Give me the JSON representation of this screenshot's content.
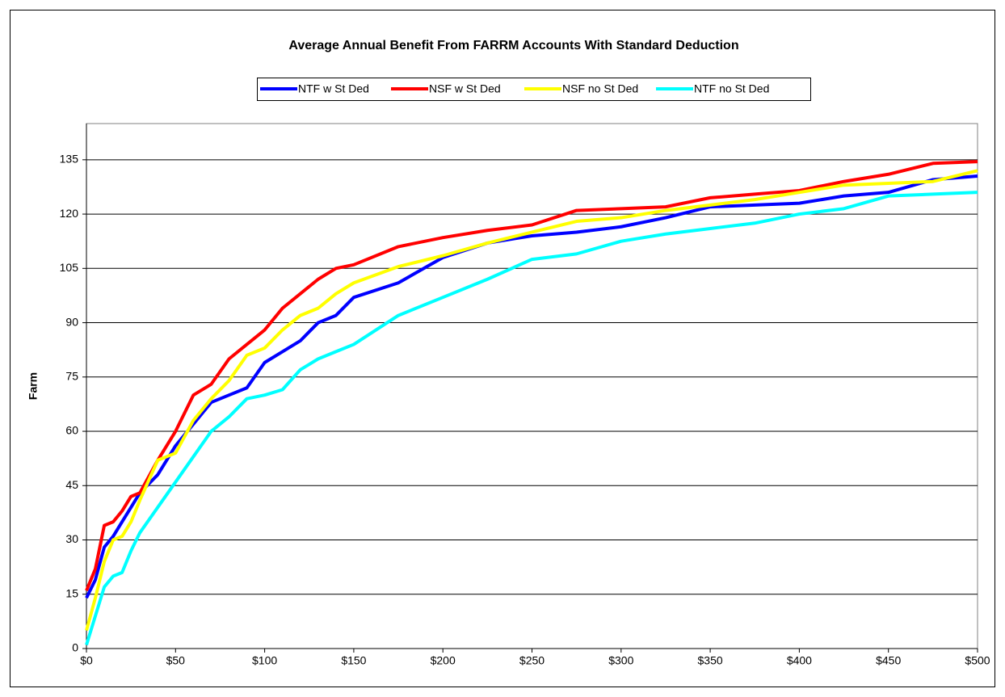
{
  "chart_data": {
    "type": "line",
    "title": "Average Annual Benefit From FARRM Accounts With Standard Deduction",
    "y_label": "Farm",
    "x": [
      0,
      5,
      10,
      15,
      20,
      25,
      30,
      40,
      50,
      60,
      70,
      80,
      90,
      100,
      110,
      120,
      130,
      140,
      150,
      175,
      200,
      225,
      250,
      275,
      300,
      325,
      350,
      375,
      400,
      425,
      450,
      475,
      500
    ],
    "series": [
      {
        "name": "NTF w St Ded",
        "color": "#0000ff",
        "values": [
          14,
          19,
          28,
          31,
          35,
          39,
          43,
          48,
          56,
          62,
          68,
          70,
          72,
          79,
          82,
          85,
          90,
          92,
          97,
          101,
          108,
          112,
          114,
          115,
          116.5,
          119,
          122,
          122.5,
          123,
          125,
          126,
          129.5,
          130.5
        ]
      },
      {
        "name": "NSF w St Ded",
        "color": "#ff0000",
        "values": [
          16,
          22,
          34,
          35,
          38,
          42,
          43,
          52,
          60,
          70,
          73,
          80,
          84,
          88,
          94,
          98,
          102,
          105,
          106,
          111,
          113.5,
          115.5,
          117,
          121,
          121.5,
          122,
          124.5,
          125.5,
          126.5,
          129,
          131,
          134,
          134.5
        ]
      },
      {
        "name": "NSF no St Ded",
        "color": "#ffff00",
        "values": [
          5,
          14,
          24,
          30,
          31,
          35,
          41,
          52,
          54,
          63,
          69,
          74,
          81,
          83,
          88,
          92,
          94,
          98,
          101,
          105.5,
          108.5,
          112,
          115,
          118,
          119,
          121,
          122.5,
          124,
          126,
          128,
          128.5,
          129,
          132
        ]
      },
      {
        "name": "NTF no St Ded",
        "color": "#00ffff",
        "values": [
          1,
          9,
          17,
          20,
          21,
          27,
          32,
          39,
          46,
          53,
          60,
          64,
          69,
          70,
          71.5,
          77,
          80,
          82,
          84,
          92,
          97,
          102,
          107.5,
          109,
          112.5,
          114.5,
          116,
          117.5,
          120,
          121.5,
          125,
          125.5,
          126
        ]
      }
    ],
    "xlim": [
      0,
      500
    ],
    "xticks": [
      {
        "value": 0,
        "label": "$0"
      },
      {
        "value": 50,
        "label": "$50"
      },
      {
        "value": 100,
        "label": "$100"
      },
      {
        "value": 150,
        "label": "$150"
      },
      {
        "value": 200,
        "label": "$200"
      },
      {
        "value": 250,
        "label": "$250"
      },
      {
        "value": 300,
        "label": "$300"
      },
      {
        "value": 350,
        "label": "$350"
      },
      {
        "value": 400,
        "label": "$400"
      },
      {
        "value": 450,
        "label": "$450"
      },
      {
        "value": 500,
        "label": "$500"
      }
    ],
    "ylim": [
      0,
      145
    ],
    "yticks": [
      0,
      15,
      30,
      45,
      60,
      75,
      90,
      105,
      120,
      135
    ],
    "grid": true,
    "legend": "top"
  }
}
